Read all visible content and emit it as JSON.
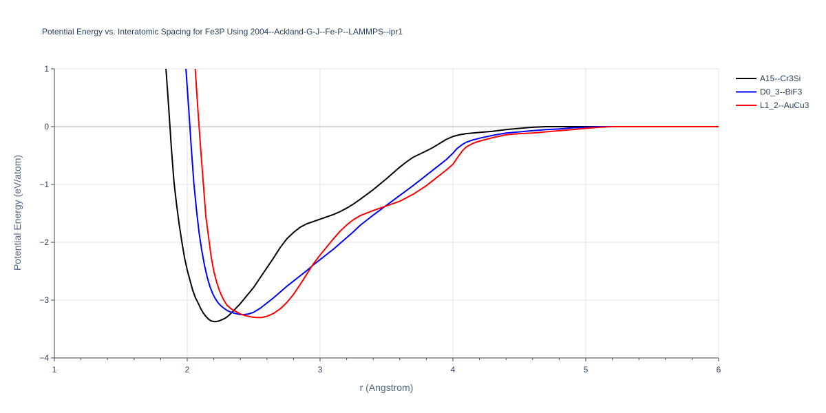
{
  "chart_data": {
    "type": "line",
    "title": "Potential Energy vs. Interatomic Spacing for Fe3P Using 2004--Ackland-G-J--Fe-P--LAMMPS--ipr1",
    "xlabel": "r (Angstrom)",
    "ylabel": "Potential Energy (eV/atom)",
    "xlim": [
      1,
      6
    ],
    "ylim": [
      -4,
      1
    ],
    "xticks": [
      1,
      2,
      3,
      4,
      5,
      6
    ],
    "xtick_labels": [
      "1",
      "2",
      "3",
      "4",
      "5",
      "6"
    ],
    "yticks": [
      1,
      0,
      -1,
      -2,
      -3,
      -4
    ],
    "ytick_labels": [
      "1",
      "0",
      "−1",
      "−2",
      "−3",
      "−4"
    ],
    "grid": true,
    "legend_position": "top-right",
    "series": [
      {
        "name": "A15--Cr3Si",
        "color": "#000000",
        "points": [
          [
            1.84,
            1.0
          ],
          [
            1.86,
            0.35
          ],
          [
            1.88,
            -0.35
          ],
          [
            1.9,
            -0.95
          ],
          [
            1.92,
            -1.35
          ],
          [
            1.94,
            -1.7
          ],
          [
            1.96,
            -2.0
          ],
          [
            1.98,
            -2.27
          ],
          [
            2.0,
            -2.48
          ],
          [
            2.02,
            -2.65
          ],
          [
            2.04,
            -2.82
          ],
          [
            2.06,
            -2.95
          ],
          [
            2.08,
            -3.04
          ],
          [
            2.1,
            -3.14
          ],
          [
            2.12,
            -3.22
          ],
          [
            2.14,
            -3.28
          ],
          [
            2.16,
            -3.33
          ],
          [
            2.18,
            -3.36
          ],
          [
            2.2,
            -3.37
          ],
          [
            2.22,
            -3.37
          ],
          [
            2.24,
            -3.36
          ],
          [
            2.26,
            -3.34
          ],
          [
            2.28,
            -3.32
          ],
          [
            2.3,
            -3.29
          ],
          [
            2.32,
            -3.25
          ],
          [
            2.35,
            -3.18
          ],
          [
            2.4,
            -3.06
          ],
          [
            2.45,
            -2.92
          ],
          [
            2.5,
            -2.78
          ],
          [
            2.55,
            -2.61
          ],
          [
            2.6,
            -2.44
          ],
          [
            2.65,
            -2.27
          ],
          [
            2.7,
            -2.09
          ],
          [
            2.75,
            -1.94
          ],
          [
            2.8,
            -1.83
          ],
          [
            2.85,
            -1.74
          ],
          [
            2.9,
            -1.68
          ],
          [
            2.95,
            -1.64
          ],
          [
            3.0,
            -1.6
          ],
          [
            3.05,
            -1.56
          ],
          [
            3.1,
            -1.52
          ],
          [
            3.15,
            -1.47
          ],
          [
            3.2,
            -1.41
          ],
          [
            3.25,
            -1.34
          ],
          [
            3.3,
            -1.26
          ],
          [
            3.4,
            -1.09
          ],
          [
            3.5,
            -0.9
          ],
          [
            3.6,
            -0.7
          ],
          [
            3.65,
            -0.61
          ],
          [
            3.7,
            -0.53
          ],
          [
            3.8,
            -0.42
          ],
          [
            3.85,
            -0.36
          ],
          [
            3.9,
            -0.29
          ],
          [
            3.95,
            -0.22
          ],
          [
            4.0,
            -0.17
          ],
          [
            4.05,
            -0.14
          ],
          [
            4.1,
            -0.12
          ],
          [
            4.2,
            -0.1
          ],
          [
            4.3,
            -0.08
          ],
          [
            4.4,
            -0.05
          ],
          [
            4.5,
            -0.03
          ],
          [
            4.6,
            -0.01
          ],
          [
            4.7,
            0.0
          ],
          [
            5.0,
            0.0
          ],
          [
            6.0,
            0.0
          ]
        ]
      },
      {
        "name": "D0_3--BiF3",
        "color": "#0000ff",
        "points": [
          [
            1.99,
            1.0
          ],
          [
            2.01,
            0.35
          ],
          [
            2.03,
            -0.35
          ],
          [
            2.05,
            -0.98
          ],
          [
            2.07,
            -1.45
          ],
          [
            2.09,
            -1.85
          ],
          [
            2.11,
            -2.15
          ],
          [
            2.13,
            -2.4
          ],
          [
            2.15,
            -2.6
          ],
          [
            2.17,
            -2.76
          ],
          [
            2.19,
            -2.88
          ],
          [
            2.21,
            -2.97
          ],
          [
            2.23,
            -3.04
          ],
          [
            2.25,
            -3.09
          ],
          [
            2.27,
            -3.13
          ],
          [
            2.3,
            -3.18
          ],
          [
            2.33,
            -3.21
          ],
          [
            2.36,
            -3.23
          ],
          [
            2.4,
            -3.25
          ],
          [
            2.43,
            -3.25
          ],
          [
            2.46,
            -3.24
          ],
          [
            2.5,
            -3.21
          ],
          [
            2.55,
            -3.14
          ],
          [
            2.6,
            -3.05
          ],
          [
            2.65,
            -2.96
          ],
          [
            2.7,
            -2.86
          ],
          [
            2.75,
            -2.76
          ],
          [
            2.8,
            -2.67
          ],
          [
            2.85,
            -2.58
          ],
          [
            2.9,
            -2.49
          ],
          [
            2.95,
            -2.39
          ],
          [
            3.0,
            -2.3
          ],
          [
            3.05,
            -2.21
          ],
          [
            3.1,
            -2.12
          ],
          [
            3.15,
            -2.02
          ],
          [
            3.2,
            -1.92
          ],
          [
            3.25,
            -1.82
          ],
          [
            3.3,
            -1.71
          ],
          [
            3.4,
            -1.53
          ],
          [
            3.5,
            -1.36
          ],
          [
            3.6,
            -1.19
          ],
          [
            3.7,
            -1.02
          ],
          [
            3.8,
            -0.84
          ],
          [
            3.9,
            -0.66
          ],
          [
            3.95,
            -0.57
          ],
          [
            4.0,
            -0.46
          ],
          [
            4.03,
            -0.38
          ],
          [
            4.07,
            -0.31
          ],
          [
            4.1,
            -0.27
          ],
          [
            4.15,
            -0.23
          ],
          [
            4.2,
            -0.2
          ],
          [
            4.3,
            -0.15
          ],
          [
            4.4,
            -0.11
          ],
          [
            4.5,
            -0.09
          ],
          [
            4.6,
            -0.07
          ],
          [
            4.7,
            -0.05
          ],
          [
            4.8,
            -0.04
          ],
          [
            4.9,
            -0.02
          ],
          [
            5.0,
            -0.01
          ],
          [
            5.1,
            0.0
          ],
          [
            6.0,
            0.0
          ]
        ]
      },
      {
        "name": "L1_2--AuCu3",
        "color": "#ff0000",
        "points": [
          [
            2.06,
            1.0
          ],
          [
            2.08,
            0.3
          ],
          [
            2.1,
            -0.35
          ],
          [
            2.12,
            -0.95
          ],
          [
            2.14,
            -1.55
          ],
          [
            2.16,
            -1.9
          ],
          [
            2.18,
            -2.25
          ],
          [
            2.2,
            -2.5
          ],
          [
            2.22,
            -2.68
          ],
          [
            2.24,
            -2.82
          ],
          [
            2.26,
            -2.93
          ],
          [
            2.28,
            -3.02
          ],
          [
            2.3,
            -3.09
          ],
          [
            2.33,
            -3.15
          ],
          [
            2.36,
            -3.19
          ],
          [
            2.4,
            -3.24
          ],
          [
            2.44,
            -3.27
          ],
          [
            2.48,
            -3.29
          ],
          [
            2.52,
            -3.3
          ],
          [
            2.56,
            -3.3
          ],
          [
            2.6,
            -3.28
          ],
          [
            2.65,
            -3.23
          ],
          [
            2.7,
            -3.15
          ],
          [
            2.75,
            -3.04
          ],
          [
            2.8,
            -2.9
          ],
          [
            2.85,
            -2.73
          ],
          [
            2.9,
            -2.55
          ],
          [
            2.95,
            -2.37
          ],
          [
            3.0,
            -2.22
          ],
          [
            3.05,
            -2.08
          ],
          [
            3.1,
            -1.94
          ],
          [
            3.15,
            -1.81
          ],
          [
            3.2,
            -1.7
          ],
          [
            3.25,
            -1.61
          ],
          [
            3.3,
            -1.54
          ],
          [
            3.4,
            -1.45
          ],
          [
            3.5,
            -1.37
          ],
          [
            3.6,
            -1.29
          ],
          [
            3.7,
            -1.17
          ],
          [
            3.8,
            -1.02
          ],
          [
            3.9,
            -0.84
          ],
          [
            3.95,
            -0.75
          ],
          [
            4.0,
            -0.65
          ],
          [
            4.03,
            -0.55
          ],
          [
            4.07,
            -0.42
          ],
          [
            4.1,
            -0.35
          ],
          [
            4.15,
            -0.29
          ],
          [
            4.2,
            -0.25
          ],
          [
            4.3,
            -0.19
          ],
          [
            4.4,
            -0.14
          ],
          [
            4.5,
            -0.12
          ],
          [
            4.6,
            -0.11
          ],
          [
            4.7,
            -0.09
          ],
          [
            4.8,
            -0.07
          ],
          [
            4.9,
            -0.05
          ],
          [
            5.0,
            -0.03
          ],
          [
            5.1,
            -0.01
          ],
          [
            5.2,
            0.0
          ],
          [
            6.0,
            0.0
          ]
        ]
      }
    ]
  }
}
